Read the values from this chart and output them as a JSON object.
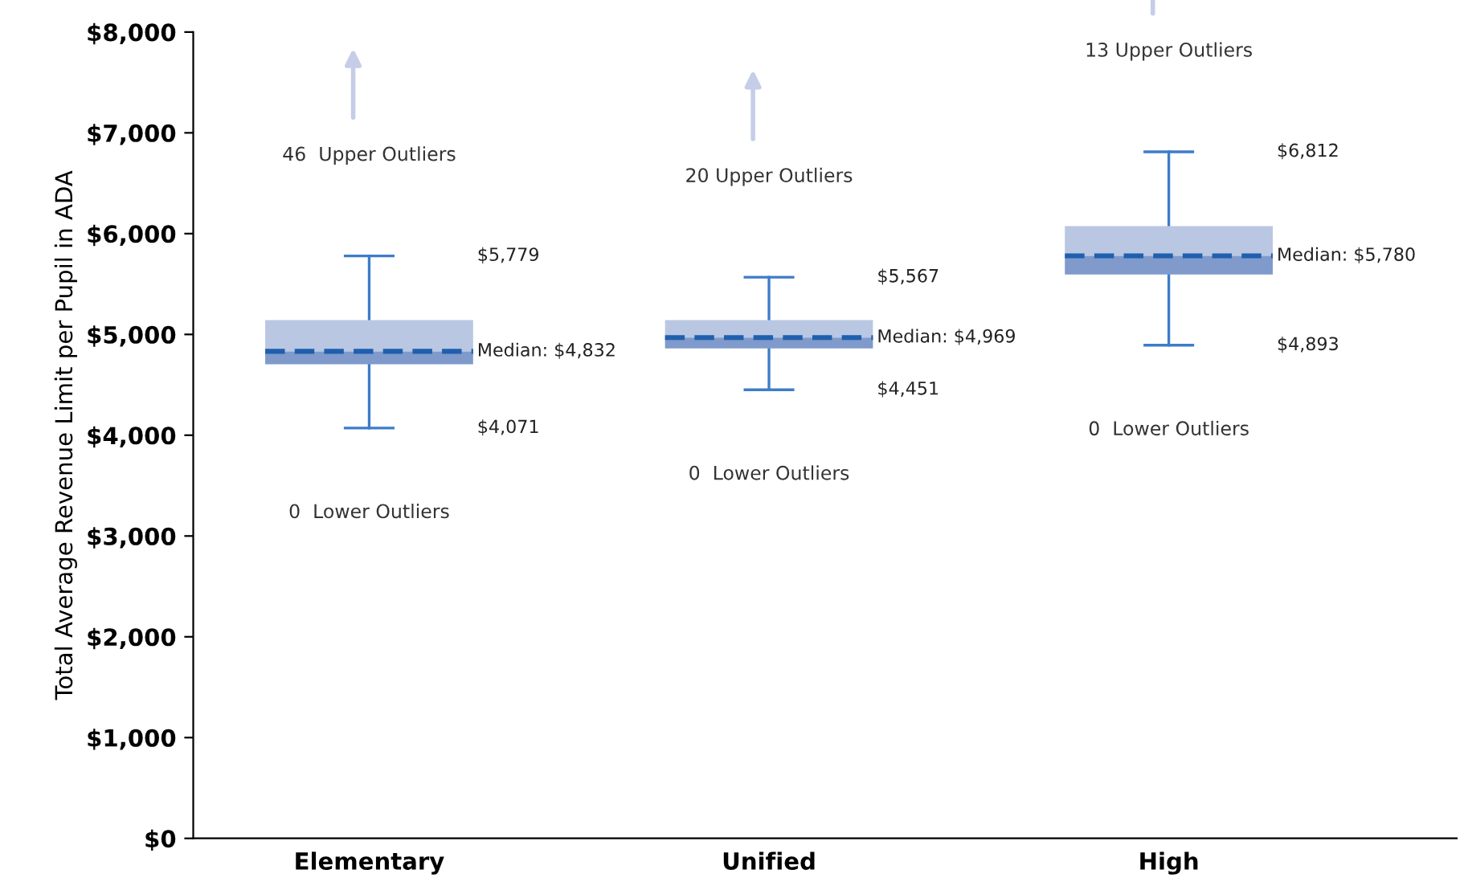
{
  "chart_data": {
    "type": "box",
    "ylabel": "Total Average Revenue Limit per Pupil in ADA",
    "categories": [
      "Elementary",
      "Unified",
      "High"
    ],
    "boxes": [
      {
        "low": 4071,
        "q1": 4703,
        "median": 4832,
        "q3": 5143,
        "high": 5779
      },
      {
        "low": 4451,
        "q1": 4862,
        "median": 4969,
        "q3": 5143,
        "high": 5567
      },
      {
        "low": 4893,
        "q1": 5595,
        "median": 5780,
        "q3": 6075,
        "high": 6812
      }
    ],
    "colors": [
      "#7f9acb",
      "#7f9acb",
      "#7f9acb"
    ],
    "ylim": [
      0,
      8000
    ],
    "yticks": [
      {
        "value": 0,
        "label": "$0"
      },
      {
        "value": 1000,
        "label": "$1,000"
      },
      {
        "value": 2000,
        "label": "$2,000"
      },
      {
        "value": 3000,
        "label": "$3,000"
      },
      {
        "value": 4000,
        "label": "$4,000"
      },
      {
        "value": 5000,
        "label": "$5,000"
      },
      {
        "value": 6000,
        "label": "$6,000"
      },
      {
        "value": 7000,
        "label": "$7,000"
      },
      {
        "value": 8000,
        "label": "$8,000"
      }
    ],
    "line_style": "dashed",
    "annotations": [
      "46  Upper Outliers",
      "$5,779",
      "Median: $4,832",
      "$4,071",
      "0  Lower Outliers",
      "20 Upper Outliers",
      "$5,567",
      "Median: $4,969",
      "$4,451",
      "0  Lower Outliers",
      "13 Upper Outliers",
      "$6,812",
      "Median: $5,780",
      "$4,893",
      "0  Lower Outliers"
    ]
  }
}
